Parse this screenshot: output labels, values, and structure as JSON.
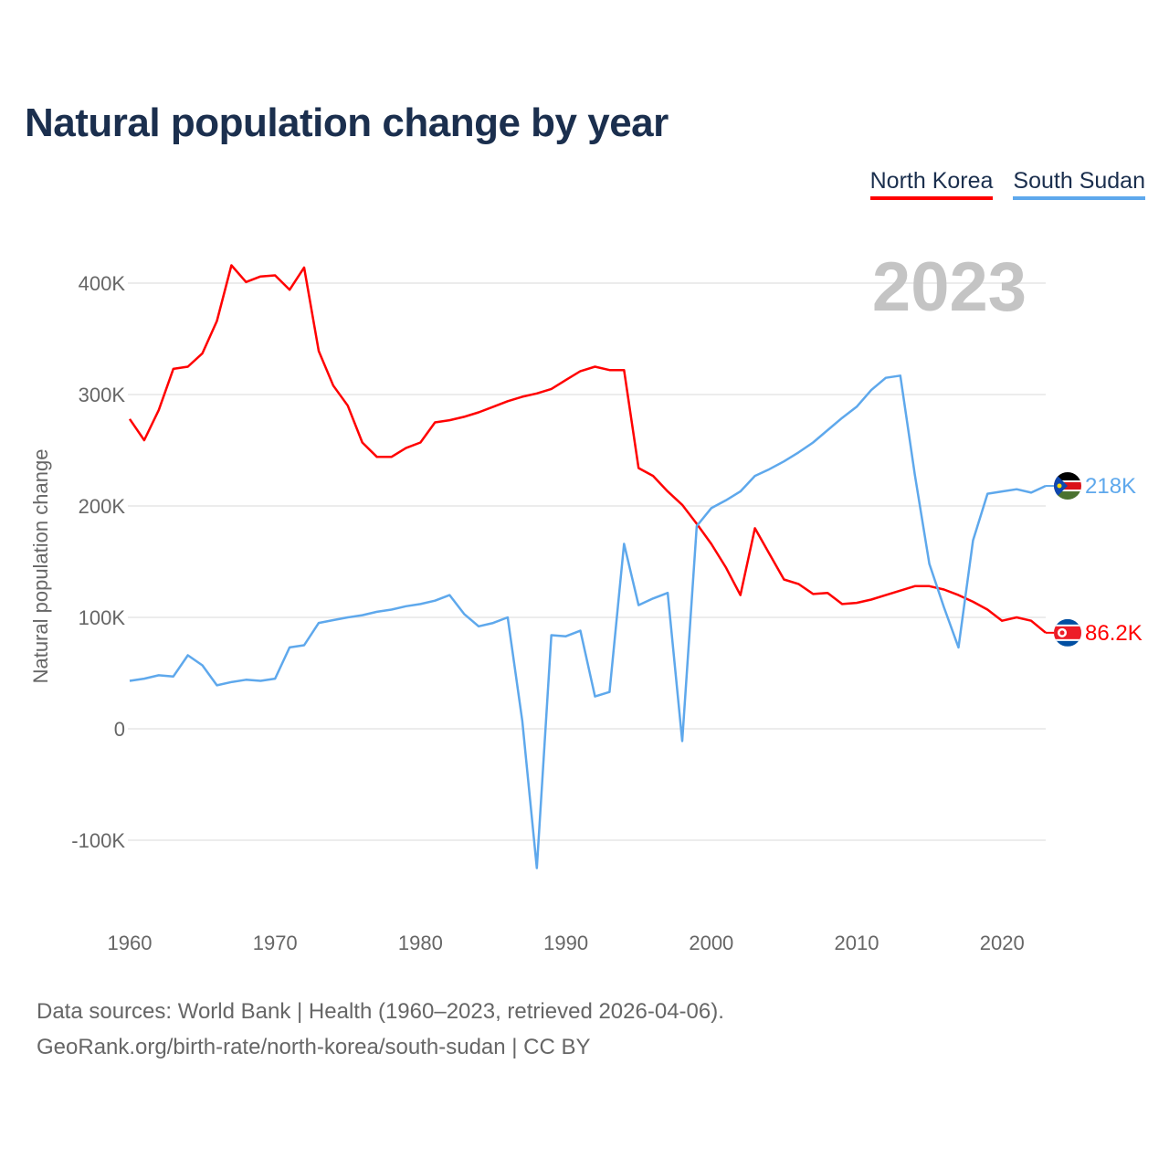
{
  "title": "Natural population change by year",
  "footer": {
    "line1": "Data sources: World Bank | Health (1960–2023, retrieved 2026-04-06).",
    "line2": "GeoRank.org/birth-rate/north-korea/south-sudan | CC BY"
  },
  "chart_data": {
    "type": "line",
    "title": "Natural population change by year",
    "xlabel": "",
    "ylabel": "Natural population change",
    "year_label": "2023",
    "xlim": [
      1960,
      2023
    ],
    "ylim": [
      -150000,
      430000
    ],
    "x_ticks": [
      1960,
      1970,
      1980,
      1990,
      2000,
      2010,
      2020
    ],
    "y_ticks": [
      {
        "value": -100000,
        "label": "-100K"
      },
      {
        "value": 0,
        "label": "0"
      },
      {
        "value": 100000,
        "label": "100K"
      },
      {
        "value": 200000,
        "label": "200K"
      },
      {
        "value": 300000,
        "label": "300K"
      },
      {
        "value": 400000,
        "label": "400K"
      }
    ],
    "grid": true,
    "legend_position": "top-right",
    "x": [
      1960,
      1961,
      1962,
      1963,
      1964,
      1965,
      1966,
      1967,
      1968,
      1969,
      1970,
      1971,
      1972,
      1973,
      1974,
      1975,
      1976,
      1977,
      1978,
      1979,
      1980,
      1981,
      1982,
      1983,
      1984,
      1985,
      1986,
      1987,
      1988,
      1989,
      1990,
      1991,
      1992,
      1993,
      1994,
      1995,
      1996,
      1997,
      1998,
      1999,
      2000,
      2001,
      2002,
      2003,
      2004,
      2005,
      2006,
      2007,
      2008,
      2009,
      2010,
      2011,
      2012,
      2013,
      2014,
      2015,
      2016,
      2017,
      2018,
      2019,
      2020,
      2021,
      2022,
      2023
    ],
    "series": [
      {
        "name": "North Korea",
        "color": "#ff0000",
        "end_label": "86.2K",
        "values": [
          278000,
          259000,
          286000,
          323000,
          325000,
          337000,
          366000,
          416000,
          401000,
          406000,
          407000,
          394000,
          414000,
          339000,
          308000,
          290000,
          257000,
          244000,
          244000,
          252000,
          257000,
          275000,
          277000,
          280000,
          284000,
          289000,
          294000,
          298000,
          301000,
          305000,
          313000,
          321000,
          325000,
          322000,
          322000,
          234000,
          227000,
          213000,
          201000,
          184000,
          166000,
          145000,
          120000,
          180000,
          157000,
          134000,
          130000,
          121000,
          122000,
          112000,
          113000,
          116000,
          120000,
          124000,
          128000,
          128000,
          125000,
          120000,
          114000,
          107000,
          97000,
          100000,
          97000,
          86200
        ]
      },
      {
        "name": "South Sudan",
        "color": "#5ea8ec",
        "end_label": "218K",
        "values": [
          43000,
          45000,
          48000,
          47000,
          66000,
          57000,
          39000,
          42000,
          44000,
          43000,
          45000,
          73000,
          75000,
          95000,
          97500,
          100000,
          102000,
          105000,
          107000,
          110000,
          112000,
          115000,
          120000,
          103000,
          92000,
          95000,
          100000,
          7000,
          -125000,
          84000,
          83000,
          88000,
          29000,
          33000,
          166000,
          111000,
          117000,
          122000,
          -11000,
          182000,
          198000,
          205000,
          213000,
          227000,
          233000,
          240000,
          248000,
          257000,
          268000,
          279000,
          289000,
          304000,
          315000,
          317000,
          228000,
          148000,
          109000,
          73000,
          169000,
          211000,
          213000,
          215000,
          212000,
          218000
        ]
      }
    ]
  }
}
